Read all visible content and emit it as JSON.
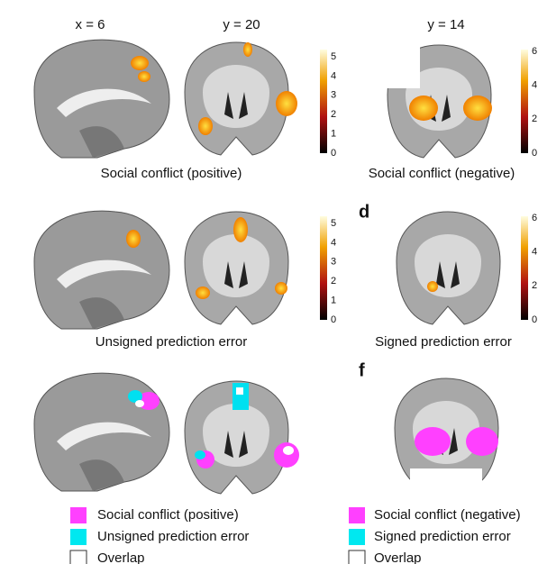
{
  "top_left": {
    "coordinates": [
      "x = 6",
      "y = 20"
    ],
    "caption": "Social conflict (positive)",
    "colorbar_ticks": [
      0,
      1,
      2,
      3,
      4,
      5
    ]
  },
  "top_right": {
    "coordinate": "y = 14",
    "caption": "Social conflict (negative)",
    "colorbar_ticks": [
      0,
      2,
      4,
      6
    ]
  },
  "middle_left": {
    "caption": "Unsigned prediction error",
    "colorbar_ticks": [
      0,
      1,
      2,
      3,
      4,
      5
    ]
  },
  "middle_right": {
    "letter": "d",
    "caption": "Signed prediction error",
    "colorbar_ticks": [
      0,
      2,
      4,
      6
    ]
  },
  "bottom_right": {
    "letter": "f"
  },
  "legend_left": [
    "Social conflict (positive)",
    "Unsigned prediction error",
    "Overlap"
  ],
  "legend_right": [
    "Social conflict (negative)",
    "Signed prediction error",
    "Overlap"
  ]
}
